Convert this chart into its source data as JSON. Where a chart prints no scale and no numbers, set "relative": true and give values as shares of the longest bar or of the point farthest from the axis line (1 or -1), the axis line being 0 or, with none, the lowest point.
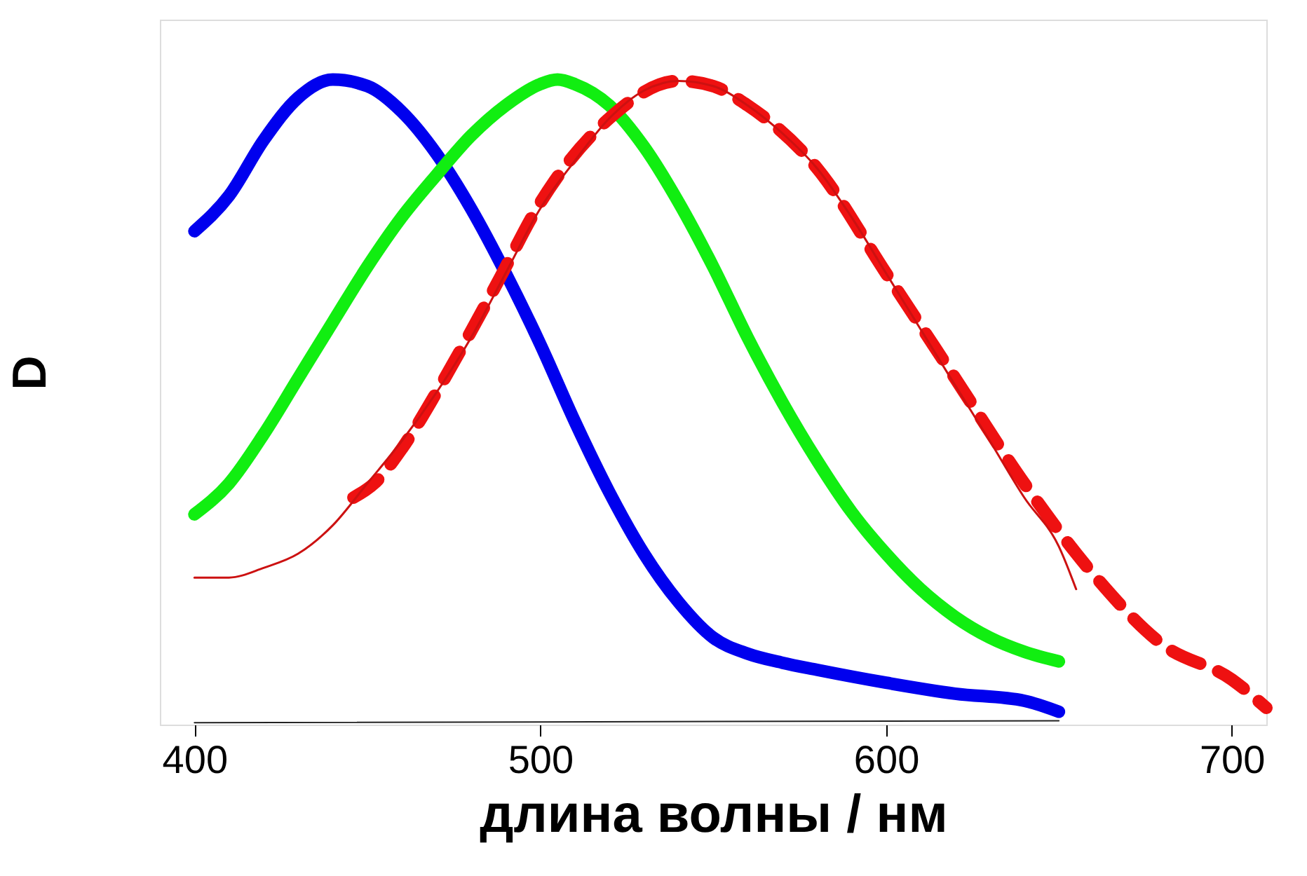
{
  "chart_data": {
    "type": "line",
    "relative": true,
    "xlabel": "длина волны / нм",
    "ylabel": "D",
    "xlim": [
      390,
      710
    ],
    "xticks": [
      400,
      500,
      600,
      700
    ],
    "grid": false,
    "marker": "none",
    "tick_labels": "x",
    "series": [
      {
        "color": "#0000ee",
        "line_style": "solid",
        "x": [
          400,
          410,
          420,
          430,
          440,
          450,
          460,
          470,
          480,
          490,
          500,
          510,
          520,
          530,
          540,
          550,
          560,
          570,
          580,
          600,
          620,
          640,
          650
        ],
        "values": [
          0.765,
          0.82,
          0.906,
          0.972,
          1.0,
          0.99,
          0.95,
          0.885,
          0.8,
          0.7,
          0.59,
          0.47,
          0.36,
          0.265,
          0.19,
          0.135,
          0.11,
          0.096,
          0.085,
          0.065,
          0.048,
          0.037,
          0.02
        ]
      },
      {
        "color": "#11ee11",
        "line_style": "solid",
        "x": [
          400,
          410,
          420,
          430,
          440,
          450,
          460,
          470,
          480,
          490,
          500,
          505,
          510,
          520,
          530,
          540,
          550,
          560,
          570,
          580,
          590,
          600,
          610,
          620,
          630,
          640,
          650
        ],
        "values": [
          0.326,
          0.374,
          0.45,
          0.537,
          0.624,
          0.71,
          0.787,
          0.852,
          0.913,
          0.96,
          0.993,
          1.0,
          0.993,
          0.96,
          0.896,
          0.81,
          0.71,
          0.6,
          0.5,
          0.41,
          0.33,
          0.265,
          0.21,
          0.167,
          0.135,
          0.113,
          0.098
        ]
      },
      {
        "color": "#ee1111",
        "line_style": "dashed",
        "x": [
          446,
          452,
          460,
          470,
          480,
          488,
          499,
          520,
          540,
          550,
          560,
          580,
          600,
          620,
          640,
          660,
          680,
          700,
          710
        ],
        "values": [
          0.352,
          0.374,
          0.428,
          0.515,
          0.61,
          0.689,
          0.8,
          0.94,
          0.998,
          0.99,
          0.96,
          0.863,
          0.7,
          0.537,
          0.374,
          0.233,
          0.124,
          0.07,
          0.026
        ]
      },
      {
        "color": "#cc1111",
        "line_style": "solid",
        "x": [
          400,
          410,
          420,
          430,
          440,
          450,
          460,
          470,
          480,
          490,
          500,
          510,
          520,
          530,
          540,
          550,
          560,
          570,
          580,
          590,
          600,
          610,
          620,
          630,
          640,
          650,
          655
        ],
        "values": [
          0.228,
          0.228,
          0.243,
          0.265,
          0.309,
          0.374,
          0.44,
          0.515,
          0.6,
          0.7,
          0.8,
          0.874,
          0.94,
          0.983,
          0.998,
          0.99,
          0.96,
          0.917,
          0.863,
          0.787,
          0.7,
          0.613,
          0.526,
          0.44,
          0.352,
          0.276,
          0.21
        ]
      },
      {
        "color": "#222222",
        "line_style": "solid",
        "x": [
          400,
          650
        ],
        "values": [
          0.003,
          0.006
        ]
      }
    ]
  }
}
